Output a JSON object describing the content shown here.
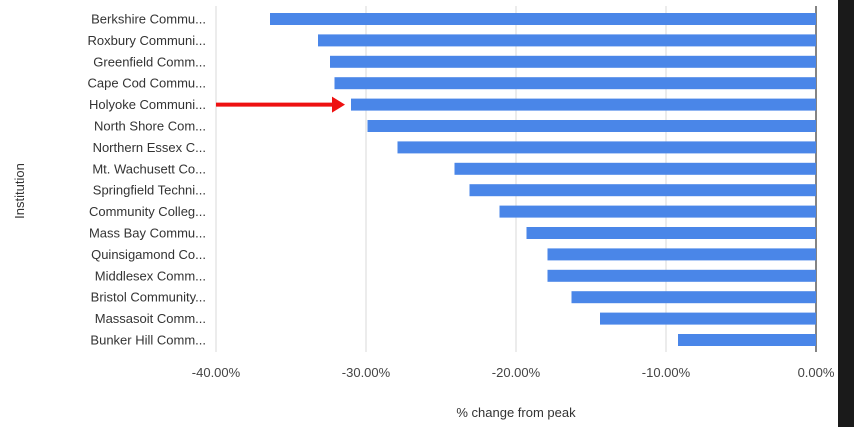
{
  "chart_data": {
    "type": "bar",
    "orientation": "horizontal",
    "title": "",
    "xlabel": "% change from peak",
    "ylabel": "Institution",
    "xlim": [
      -40,
      0
    ],
    "x_ticks": [
      -40,
      -30,
      -20,
      -10,
      0
    ],
    "x_tick_labels": [
      "-40.00%",
      "-30.00%",
      "-20.00%",
      "-10.00%",
      "0.00%"
    ],
    "grid": true,
    "bar_color": "#4a86e8",
    "categories": [
      "Berkshire Commu...",
      "Roxbury Communi...",
      "Greenfield Comm...",
      "Cape Cod Commu...",
      "Holyoke Communi...",
      "North Shore Com...",
      "Northern Essex C...",
      "Mt. Wachusett Co...",
      "Springfield Techni...",
      "Community Colleg...",
      "Mass Bay Commu...",
      "Quinsigamond Co...",
      "Middlesex Comm...",
      "Bristol Community...",
      "Massasoit Comm...",
      "Bunker Hill Comm..."
    ],
    "values": [
      -36.4,
      -33.2,
      -32.4,
      -32.1,
      -31.0,
      -29.9,
      -27.9,
      -24.1,
      -23.1,
      -21.1,
      -19.3,
      -17.9,
      -17.9,
      -16.3,
      -14.4,
      -9.2
    ],
    "annotation": {
      "type": "arrow",
      "color": "#ee1111",
      "target_category": "Holyoke Communi..."
    }
  }
}
